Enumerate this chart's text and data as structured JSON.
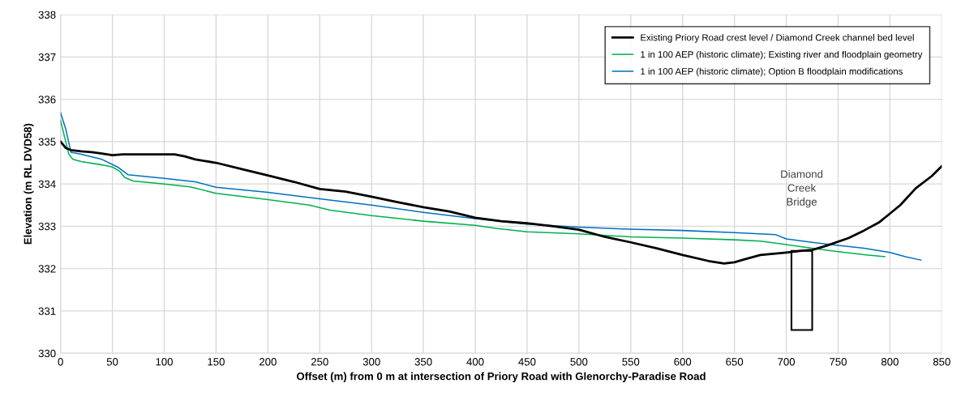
{
  "chart_data": {
    "type": "line",
    "xlabel": "Offset (m) from 0 m at intersection of Priory Road with Glenorchy-Paradise Road",
    "ylabel": "Elevation (m RL DVD58)",
    "xlim": [
      0,
      850
    ],
    "xticks": [
      0,
      50,
      100,
      150,
      200,
      250,
      300,
      350,
      400,
      450,
      500,
      550,
      600,
      650,
      700,
      750,
      800,
      850
    ],
    "ylim": [
      330,
      338
    ],
    "yticks": [
      330,
      331,
      332,
      333,
      334,
      335,
      336,
      337,
      338
    ],
    "grid": true,
    "legend": "top right",
    "marker": "none",
    "line_style": "solid",
    "annotations": [
      "Diamond\nCreek\nBridge"
    ],
    "series": [
      {
        "name": "Existing Priory Road crest level / Diamond Creek channel bed level",
        "color": "#000000",
        "x": [
          0,
          5,
          10,
          20,
          30,
          40,
          50,
          60,
          80,
          100,
          110,
          120,
          130,
          150,
          175,
          200,
          225,
          250,
          275,
          300,
          325,
          350,
          375,
          400,
          425,
          450,
          475,
          500,
          525,
          550,
          575,
          600,
          625,
          640,
          650,
          660,
          675,
          700,
          715,
          725,
          740,
          760,
          775,
          790,
          800,
          810,
          825,
          840,
          850
        ],
        "values": [
          335.0,
          334.85,
          334.8,
          334.77,
          334.75,
          334.72,
          334.68,
          334.7,
          334.7,
          334.7,
          334.7,
          334.65,
          334.58,
          334.5,
          334.35,
          334.2,
          334.05,
          333.88,
          333.82,
          333.7,
          333.57,
          333.45,
          333.35,
          333.2,
          333.12,
          333.07,
          333.0,
          332.92,
          332.75,
          332.62,
          332.48,
          332.32,
          332.18,
          332.12,
          332.15,
          332.22,
          332.32,
          332.38,
          332.42,
          332.44,
          332.55,
          332.72,
          332.9,
          333.1,
          333.3,
          333.5,
          333.9,
          334.18,
          334.42
        ]
      },
      {
        "name": "1 in 100 AEP (historic climate); Existing river and floodplain geometry",
        "color": "#00b050",
        "x": [
          0,
          5,
          8,
          12,
          20,
          40,
          50,
          57,
          62,
          70,
          100,
          125,
          150,
          200,
          240,
          260,
          300,
          350,
          400,
          420,
          450,
          500,
          550,
          600,
          650,
          675,
          690,
          725,
          750,
          775,
          795
        ],
        "values": [
          335.5,
          335.0,
          334.7,
          334.58,
          334.53,
          334.45,
          334.4,
          334.3,
          334.15,
          334.07,
          334.0,
          333.93,
          333.78,
          333.63,
          333.5,
          333.38,
          333.25,
          333.12,
          333.02,
          332.95,
          332.87,
          332.82,
          332.75,
          332.72,
          332.68,
          332.65,
          332.6,
          332.48,
          332.4,
          332.33,
          332.28
        ]
      },
      {
        "name": "1 in 100 AEP (historic climate); Option B floodplain modifications",
        "color": "#0070c0",
        "x": [
          0,
          5,
          10,
          20,
          40,
          55,
          65,
          100,
          130,
          150,
          200,
          250,
          300,
          350,
          400,
          450,
          500,
          550,
          600,
          650,
          690,
          700,
          725,
          750,
          775,
          800,
          815,
          830
        ],
        "values": [
          335.68,
          335.3,
          334.75,
          334.7,
          334.58,
          334.4,
          334.22,
          334.13,
          334.05,
          333.92,
          333.8,
          333.65,
          333.5,
          333.33,
          333.18,
          333.05,
          332.98,
          332.93,
          332.9,
          332.85,
          332.8,
          332.7,
          332.62,
          332.55,
          332.48,
          332.38,
          332.28,
          332.2
        ]
      },
      {
        "type": "bar",
        "color": "#000000",
        "x": [
          715
        ],
        "base": [
          330.55
        ],
        "values": [
          1.87
        ]
      }
    ]
  }
}
